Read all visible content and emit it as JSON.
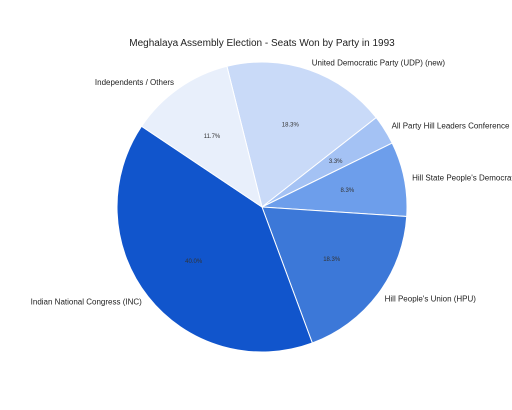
{
  "chart_data": {
    "type": "pie",
    "title": "Meghalaya Assembly Election - Seats Won by Party in 1993",
    "slices": [
      {
        "label": "United Democratic Party (UDP) (new)",
        "value": 18.3,
        "pct_text": "18.3%",
        "color": "#c9daf8"
      },
      {
        "label": "All Party Hill Leaders Conference",
        "value": 3.3,
        "pct_text": "3.3%",
        "color": "#a4c2f4"
      },
      {
        "label": "Hill State People's Democratic Party",
        "value": 8.3,
        "pct_text": "8.3%",
        "color": "#6d9eeb"
      },
      {
        "label": "Hill People's Union (HPU)",
        "value": 18.3,
        "pct_text": "18.3%",
        "color": "#3c78d8"
      },
      {
        "label": "Indian National Congress (INC)",
        "value": 40.0,
        "pct_text": "40.0%",
        "color": "#1155cc"
      },
      {
        "label": "Independents / Others",
        "value": 11.7,
        "pct_text": "11.7%",
        "color": "#e8effb"
      }
    ]
  }
}
